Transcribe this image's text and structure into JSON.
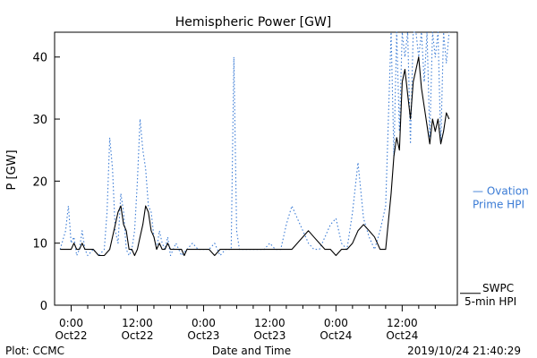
{
  "chart_data": {
    "type": "line",
    "title": "Hemispheric Power [GW]",
    "ylabel": "P [GW]",
    "xlabel": "Date and Time",
    "ylim": [
      0,
      44
    ],
    "xlim": [
      -3,
      70
    ],
    "x_unit": "hours since 2019-10-22 00:00",
    "yticks": [
      0,
      10,
      20,
      30,
      40
    ],
    "xticks": [
      {
        "x": 0,
        "time": "0:00",
        "date": "Oct22"
      },
      {
        "x": 12,
        "time": "12:00",
        "date": "Oct22"
      },
      {
        "x": 24,
        "time": "0:00",
        "date": "Oct23"
      },
      {
        "x": 36,
        "time": "12:00",
        "date": "Oct23"
      },
      {
        "x": 48,
        "time": "0:00",
        "date": "Oct24"
      },
      {
        "x": 60,
        "time": "12:00",
        "date": "Oct24"
      }
    ],
    "grid": false,
    "colors": {
      "swpc": "#000000",
      "ovation": "#3a7bd5",
      "axes": "#000000"
    },
    "series": [
      {
        "name": "SWPC 5-min HPI",
        "style": "solid",
        "x": [
          -2,
          0,
          0.5,
          1,
          1.5,
          2,
          2.5,
          3,
          3.5,
          4,
          5,
          6,
          7,
          7.5,
          8,
          8.5,
          9,
          9.5,
          10,
          10.5,
          11,
          11.5,
          12,
          12.5,
          13,
          13.5,
          14,
          14.5,
          15,
          15.5,
          16,
          16.5,
          17,
          17.5,
          18,
          18.5,
          19,
          19.5,
          20,
          20.5,
          21,
          21.5,
          22,
          22.5,
          23,
          24,
          25,
          26,
          27,
          28,
          29,
          30,
          31,
          32,
          33,
          34,
          35,
          36,
          37,
          38,
          39,
          40,
          41,
          42,
          43,
          44,
          45,
          46,
          47,
          48,
          49,
          50,
          51,
          52,
          53,
          54,
          55,
          56,
          57,
          58,
          58.5,
          59,
          59.5,
          60,
          60.5,
          61,
          61.5,
          62,
          62.5,
          63,
          63.5,
          64,
          64.5,
          65,
          65.5,
          66,
          66.5,
          67,
          67.5,
          68,
          68.5
        ],
        "values": [
          9,
          9,
          10,
          9,
          9,
          10,
          9,
          9,
          9,
          9,
          8,
          8,
          9,
          11,
          13,
          15,
          16,
          13,
          12,
          9,
          9,
          8,
          9,
          11,
          13,
          16,
          15,
          12,
          11,
          9,
          10,
          9,
          9,
          10,
          9,
          9,
          9,
          9,
          9,
          8,
          9,
          9,
          9,
          9,
          9,
          9,
          9,
          8,
          9,
          9,
          9,
          9,
          9,
          9,
          9,
          9,
          9,
          9,
          9,
          9,
          9,
          9,
          10,
          11,
          12,
          11,
          10,
          9,
          9,
          8,
          9,
          9,
          10,
          12,
          13,
          12,
          11,
          9,
          9,
          18,
          24,
          27,
          25,
          36,
          38,
          34,
          30,
          36,
          38,
          40,
          35,
          32,
          29,
          26,
          30,
          28,
          30,
          26,
          28,
          31,
          30
        ],
        "dash": ""
      },
      {
        "name": "Ovation Prime HPI",
        "style": "dotted",
        "x": [
          -2,
          -1,
          -0.5,
          0,
          0.5,
          1,
          1.5,
          2,
          2.5,
          3,
          4,
          5,
          6,
          6.5,
          7,
          7.5,
          8,
          8.5,
          9,
          9.5,
          10,
          10.5,
          11,
          11.5,
          12,
          12.5,
          13,
          13.5,
          14,
          14.5,
          15,
          15.5,
          16,
          16.5,
          17,
          17.5,
          18,
          18.5,
          19,
          20,
          21,
          22,
          23,
          24,
          25,
          26,
          27,
          28,
          29,
          29.5,
          30,
          30.5,
          31,
          32,
          33,
          34,
          35,
          36,
          37,
          38,
          39,
          40,
          41,
          42,
          43,
          44,
          45,
          46,
          47,
          48,
          49,
          50,
          51,
          52,
          53,
          54,
          55,
          56,
          57,
          58,
          58.5,
          59,
          59.5,
          60,
          60.5,
          61,
          61.5,
          62,
          62.5,
          63,
          63.5,
          64,
          64.5,
          65,
          65.5,
          66,
          66.5,
          67,
          67.5,
          68,
          68.5
        ],
        "values": [
          9,
          12,
          16,
          10,
          11,
          8,
          9,
          12,
          9,
          8,
          9,
          8,
          9,
          15,
          27,
          22,
          12,
          10,
          18,
          15,
          9,
          8,
          9,
          12,
          20,
          30,
          25,
          22,
          16,
          15,
          11,
          9,
          12,
          10,
          9,
          11,
          8,
          9,
          10,
          8,
          9,
          10,
          9,
          9,
          9,
          10,
          8,
          9,
          9,
          40,
          12,
          9,
          9,
          9,
          9,
          9,
          9,
          10,
          9,
          9,
          13,
          16,
          14,
          12,
          10,
          9,
          9,
          11,
          13,
          14,
          10,
          9,
          15,
          23,
          14,
          11,
          9,
          12,
          16,
          44,
          24,
          44,
          28,
          44,
          40,
          44,
          26,
          44,
          44,
          40,
          44,
          36,
          44,
          27,
          44,
          40,
          44,
          26,
          44,
          39,
          44
        ],
        "dash": "1.5 2.5"
      }
    ],
    "legend": [
      {
        "series": 0,
        "lines": [
          "SWPC",
          "5-min HPI"
        ],
        "color": "#000000"
      },
      {
        "series": 1,
        "lines": [
          "— Ovation",
          "Prime HPI"
        ],
        "color": "#3a7bd5"
      }
    ],
    "footer": {
      "left": "Plot: CCMC",
      "right": "2019/10/24 21:40:29"
    }
  }
}
